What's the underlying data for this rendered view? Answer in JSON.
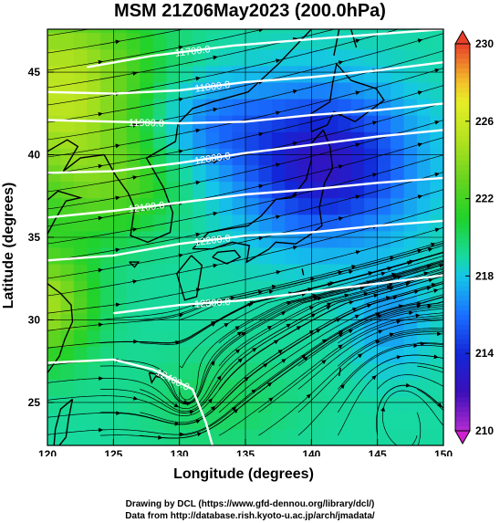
{
  "title": "MSM 21Z06May2023 (200.0hPa)",
  "credit_lines": [
    "Drawing by DCL (https://www.gfd-dennou.org/library/dcl/)",
    "Data from http://database.rish.kyoto-u.ac.jp/arch/jmadata/"
  ],
  "colors": {
    "colorbar_top": "#e8402a",
    "colorbar_bottom": "#d01fd0",
    "contour": "#ffffff",
    "coast": "#000000"
  },
  "chart_data": {
    "type": "heatmap",
    "title": "MSM 21Z06May2023 (200.0hPa)",
    "xlabel": "Longitude (degrees)",
    "ylabel": "Latitude  (degrees)",
    "xlim": [
      120,
      150
    ],
    "ylim": [
      22.4,
      47.6
    ],
    "x_ticks": [
      120,
      125,
      130,
      135,
      140,
      145,
      150
    ],
    "y_ticks": [
      25,
      30,
      35,
      40,
      45
    ],
    "grid": true,
    "field": "temperature (shaded) with streamlines and geopotential height contours",
    "colorbar": {
      "range": [
        210,
        230
      ],
      "tick_labels": [
        210,
        214,
        218,
        222,
        226,
        230
      ],
      "stops": [
        {
          "v": 210,
          "color": "#b52bd2"
        },
        {
          "v": 212,
          "color": "#3a0fb8"
        },
        {
          "v": 214,
          "color": "#1227d8"
        },
        {
          "v": 216,
          "color": "#1a70ff"
        },
        {
          "v": 218,
          "color": "#15c6e8"
        },
        {
          "v": 219,
          "color": "#17d9a0"
        },
        {
          "v": 221,
          "color": "#20d22a"
        },
        {
          "v": 223,
          "color": "#66d41f"
        },
        {
          "v": 225,
          "color": "#b2e21f"
        },
        {
          "v": 227,
          "color": "#e6ee26"
        },
        {
          "v": 228,
          "color": "#f3c12a"
        },
        {
          "v": 230,
          "color": "#e8402a"
        }
      ]
    },
    "contours": [
      {
        "label": "11700.0",
        "points": [
          [
            123,
            45.3
          ],
          [
            128,
            46.0
          ],
          [
            134,
            46.6
          ],
          [
            140,
            47.0
          ],
          [
            145,
            47.3
          ],
          [
            150,
            47.6
          ]
        ]
      },
      {
        "label": "11800.0",
        "points": [
          [
            120,
            43.8
          ],
          [
            125,
            43.7
          ],
          [
            130,
            43.9
          ],
          [
            135,
            44.4
          ],
          [
            140,
            44.7
          ],
          [
            145,
            45.1
          ],
          [
            150,
            45.6
          ]
        ]
      },
      {
        "label": "11900.0",
        "points": [
          [
            120,
            42.1
          ],
          [
            125,
            42.0
          ],
          [
            130,
            41.9
          ],
          [
            135,
            42.0
          ],
          [
            140,
            42.4
          ],
          [
            145,
            42.7
          ],
          [
            150,
            43.1
          ]
        ]
      },
      {
        "label": "12000.0",
        "points": [
          [
            120,
            38.9
          ],
          [
            125,
            39.0
          ],
          [
            130,
            39.5
          ],
          [
            135,
            40.1
          ],
          [
            140,
            40.6
          ],
          [
            145,
            41.1
          ],
          [
            150,
            41.5
          ]
        ]
      },
      {
        "label": "12100.0",
        "points": [
          [
            120,
            36.2
          ],
          [
            125,
            36.6
          ],
          [
            130,
            37.1
          ],
          [
            135,
            37.6
          ],
          [
            140,
            37.9
          ],
          [
            145,
            38.3
          ],
          [
            150,
            38.6
          ]
        ]
      },
      {
        "label": "12200.0",
        "points": [
          [
            120,
            33.6
          ],
          [
            125,
            33.9
          ],
          [
            130,
            34.6
          ],
          [
            135,
            35.1
          ],
          [
            140,
            35.3
          ],
          [
            145,
            35.7
          ],
          [
            150,
            36.0
          ]
        ]
      },
      {
        "label": "12300.0",
        "points": [
          [
            125,
            30.4
          ],
          [
            130,
            30.9
          ],
          [
            135,
            31.2
          ],
          [
            140,
            31.7
          ],
          [
            145,
            32.2
          ],
          [
            150,
            32.7
          ]
        ]
      },
      {
        "label": "12400.0",
        "points": [
          [
            120,
            27.4
          ],
          [
            125,
            27.6
          ],
          [
            128,
            27.0
          ],
          [
            131,
            25.8
          ],
          [
            132,
            23.8
          ],
          [
            132.5,
            22.4
          ]
        ]
      }
    ],
    "vortex_center": {
      "lon": 146.5,
      "lat": 24.5
    },
    "temperature_field_notes": "warm (~226) northwest and far west, cold (~213) core over Japan/Sea of Japan 38-42N, warm band ~218-220 south of 30N"
  }
}
